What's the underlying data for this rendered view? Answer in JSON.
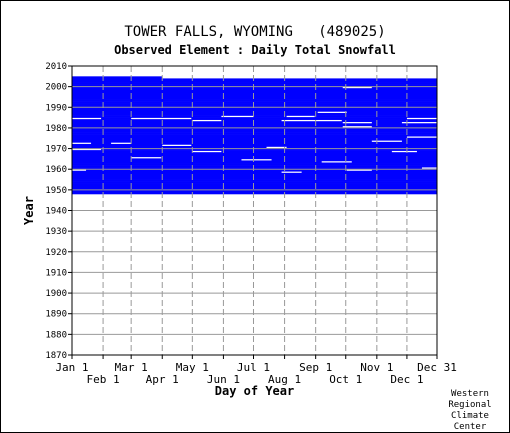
{
  "chart_data": {
    "type": "heatmap",
    "title": "TOWER FALLS, WYOMING   (489025)",
    "subtitle": "Observed Element : Daily Total Snowfall",
    "xlabel": "Day of Year",
    "ylabel": "Year",
    "xlim": [
      1,
      365
    ],
    "ylim": [
      1870,
      2010
    ],
    "y_ticks": [
      1870,
      1880,
      1890,
      1900,
      1910,
      1920,
      1930,
      1940,
      1950,
      1960,
      1970,
      1980,
      1990,
      2000,
      2010
    ],
    "x_ticks_upper": [
      {
        "label": "Jan 1",
        "day": 1
      },
      {
        "label": "Mar 1",
        "day": 60
      },
      {
        "label": "May 1",
        "day": 121
      },
      {
        "label": "Jul 1",
        "day": 182
      },
      {
        "label": "Sep 1",
        "day": 244
      },
      {
        "label": "Nov 1",
        "day": 305
      },
      {
        "label": "Dec 31",
        "day": 365
      }
    ],
    "x_ticks_lower": [
      {
        "label": "Feb 1",
        "day": 32
      },
      {
        "label": "Apr 1",
        "day": 91
      },
      {
        "label": "Jun 1",
        "day": 152
      },
      {
        "label": "Aug 1",
        "day": 213
      },
      {
        "label": "Oct 1",
        "day": 274
      },
      {
        "label": "Dec 1",
        "day": 335
      }
    ],
    "data_color": "#0000ff",
    "grid": true,
    "record_span": {
      "start_year": 1948,
      "end_year": 2004,
      "late_start_day": 91
    },
    "missing_segments": [
      {
        "year": 1999,
        "start_day": 271,
        "end_day": 300
      },
      {
        "year": 1987,
        "start_day": 246,
        "end_day": 275
      },
      {
        "year": 1985,
        "start_day": 150,
        "end_day": 182
      },
      {
        "year": 1985,
        "start_day": 215,
        "end_day": 243
      },
      {
        "year": 1984,
        "start_day": 1,
        "end_day": 30
      },
      {
        "year": 1984,
        "start_day": 60,
        "end_day": 120
      },
      {
        "year": 1984,
        "start_day": 335,
        "end_day": 365
      },
      {
        "year": 1983,
        "start_day": 121,
        "end_day": 150
      },
      {
        "year": 1983,
        "start_day": 210,
        "end_day": 270
      },
      {
        "year": 1982,
        "start_day": 271,
        "end_day": 300
      },
      {
        "year": 1982,
        "start_day": 330,
        "end_day": 365
      },
      {
        "year": 1980,
        "start_day": 271,
        "end_day": 300
      },
      {
        "year": 1975,
        "start_day": 335,
        "end_day": 365
      },
      {
        "year": 1973,
        "start_day": 300,
        "end_day": 330
      },
      {
        "year": 1972,
        "start_day": 1,
        "end_day": 20
      },
      {
        "year": 1972,
        "start_day": 40,
        "end_day": 60
      },
      {
        "year": 1971,
        "start_day": 91,
        "end_day": 120
      },
      {
        "year": 1970,
        "start_day": 195,
        "end_day": 215
      },
      {
        "year": 1969,
        "start_day": 1,
        "end_day": 30
      },
      {
        "year": 1968,
        "start_day": 121,
        "end_day": 150
      },
      {
        "year": 1968,
        "start_day": 320,
        "end_day": 345
      },
      {
        "year": 1965,
        "start_day": 60,
        "end_day": 90
      },
      {
        "year": 1964,
        "start_day": 170,
        "end_day": 200
      },
      {
        "year": 1963,
        "start_day": 250,
        "end_day": 280
      },
      {
        "year": 1960,
        "start_day": 350,
        "end_day": 365
      },
      {
        "year": 1959,
        "start_day": 1,
        "end_day": 15
      },
      {
        "year": 1959,
        "start_day": 275,
        "end_day": 300
      },
      {
        "year": 1958,
        "start_day": 210,
        "end_day": 230
      }
    ]
  },
  "footer": {
    "credit_lines": [
      "Western",
      "Regional",
      "Climate",
      "Center"
    ]
  }
}
